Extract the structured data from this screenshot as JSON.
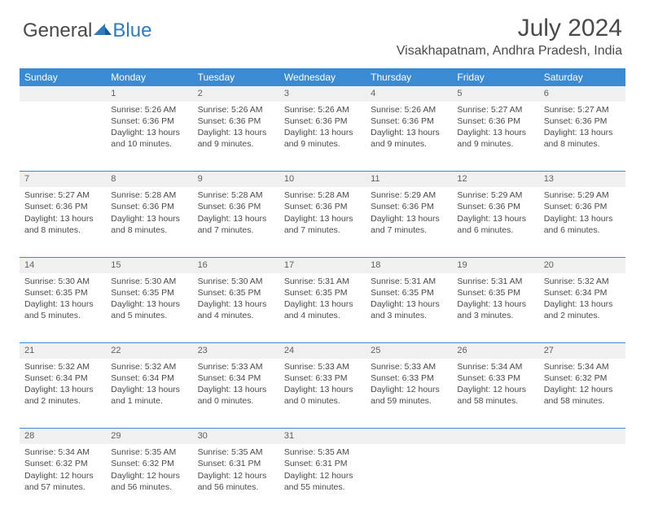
{
  "logo": {
    "text1": "General",
    "text2": "Blue"
  },
  "title": "July 2024",
  "location": "Visakhapatnam, Andhra Pradesh, India",
  "colors": {
    "header_bg": "#3b8bd4",
    "header_text": "#ffffff",
    "daynum_bg": "#f0f0f0",
    "row_divider": "#3b8bd4",
    "body_text": "#4a4a4a",
    "logo_gray": "#4a4a4a",
    "logo_blue": "#2e7cc0"
  },
  "weekdays": [
    "Sunday",
    "Monday",
    "Tuesday",
    "Wednesday",
    "Thursday",
    "Friday",
    "Saturday"
  ],
  "weeks": [
    {
      "nums": [
        "",
        "1",
        "2",
        "3",
        "4",
        "5",
        "6"
      ],
      "cells": [
        null,
        {
          "sunrise": "Sunrise: 5:26 AM",
          "sunset": "Sunset: 6:36 PM",
          "day1": "Daylight: 13 hours",
          "day2": "and 10 minutes."
        },
        {
          "sunrise": "Sunrise: 5:26 AM",
          "sunset": "Sunset: 6:36 PM",
          "day1": "Daylight: 13 hours",
          "day2": "and 9 minutes."
        },
        {
          "sunrise": "Sunrise: 5:26 AM",
          "sunset": "Sunset: 6:36 PM",
          "day1": "Daylight: 13 hours",
          "day2": "and 9 minutes."
        },
        {
          "sunrise": "Sunrise: 5:26 AM",
          "sunset": "Sunset: 6:36 PM",
          "day1": "Daylight: 13 hours",
          "day2": "and 9 minutes."
        },
        {
          "sunrise": "Sunrise: 5:27 AM",
          "sunset": "Sunset: 6:36 PM",
          "day1": "Daylight: 13 hours",
          "day2": "and 9 minutes."
        },
        {
          "sunrise": "Sunrise: 5:27 AM",
          "sunset": "Sunset: 6:36 PM",
          "day1": "Daylight: 13 hours",
          "day2": "and 8 minutes."
        }
      ]
    },
    {
      "nums": [
        "7",
        "8",
        "9",
        "10",
        "11",
        "12",
        "13"
      ],
      "cells": [
        {
          "sunrise": "Sunrise: 5:27 AM",
          "sunset": "Sunset: 6:36 PM",
          "day1": "Daylight: 13 hours",
          "day2": "and 8 minutes."
        },
        {
          "sunrise": "Sunrise: 5:28 AM",
          "sunset": "Sunset: 6:36 PM",
          "day1": "Daylight: 13 hours",
          "day2": "and 8 minutes."
        },
        {
          "sunrise": "Sunrise: 5:28 AM",
          "sunset": "Sunset: 6:36 PM",
          "day1": "Daylight: 13 hours",
          "day2": "and 7 minutes."
        },
        {
          "sunrise": "Sunrise: 5:28 AM",
          "sunset": "Sunset: 6:36 PM",
          "day1": "Daylight: 13 hours",
          "day2": "and 7 minutes."
        },
        {
          "sunrise": "Sunrise: 5:29 AM",
          "sunset": "Sunset: 6:36 PM",
          "day1": "Daylight: 13 hours",
          "day2": "and 7 minutes."
        },
        {
          "sunrise": "Sunrise: 5:29 AM",
          "sunset": "Sunset: 6:36 PM",
          "day1": "Daylight: 13 hours",
          "day2": "and 6 minutes."
        },
        {
          "sunrise": "Sunrise: 5:29 AM",
          "sunset": "Sunset: 6:36 PM",
          "day1": "Daylight: 13 hours",
          "day2": "and 6 minutes."
        }
      ]
    },
    {
      "nums": [
        "14",
        "15",
        "16",
        "17",
        "18",
        "19",
        "20"
      ],
      "cells": [
        {
          "sunrise": "Sunrise: 5:30 AM",
          "sunset": "Sunset: 6:35 PM",
          "day1": "Daylight: 13 hours",
          "day2": "and 5 minutes."
        },
        {
          "sunrise": "Sunrise: 5:30 AM",
          "sunset": "Sunset: 6:35 PM",
          "day1": "Daylight: 13 hours",
          "day2": "and 5 minutes."
        },
        {
          "sunrise": "Sunrise: 5:30 AM",
          "sunset": "Sunset: 6:35 PM",
          "day1": "Daylight: 13 hours",
          "day2": "and 4 minutes."
        },
        {
          "sunrise": "Sunrise: 5:31 AM",
          "sunset": "Sunset: 6:35 PM",
          "day1": "Daylight: 13 hours",
          "day2": "and 4 minutes."
        },
        {
          "sunrise": "Sunrise: 5:31 AM",
          "sunset": "Sunset: 6:35 PM",
          "day1": "Daylight: 13 hours",
          "day2": "and 3 minutes."
        },
        {
          "sunrise": "Sunrise: 5:31 AM",
          "sunset": "Sunset: 6:35 PM",
          "day1": "Daylight: 13 hours",
          "day2": "and 3 minutes."
        },
        {
          "sunrise": "Sunrise: 5:32 AM",
          "sunset": "Sunset: 6:34 PM",
          "day1": "Daylight: 13 hours",
          "day2": "and 2 minutes."
        }
      ]
    },
    {
      "nums": [
        "21",
        "22",
        "23",
        "24",
        "25",
        "26",
        "27"
      ],
      "cells": [
        {
          "sunrise": "Sunrise: 5:32 AM",
          "sunset": "Sunset: 6:34 PM",
          "day1": "Daylight: 13 hours",
          "day2": "and 2 minutes."
        },
        {
          "sunrise": "Sunrise: 5:32 AM",
          "sunset": "Sunset: 6:34 PM",
          "day1": "Daylight: 13 hours",
          "day2": "and 1 minute."
        },
        {
          "sunrise": "Sunrise: 5:33 AM",
          "sunset": "Sunset: 6:34 PM",
          "day1": "Daylight: 13 hours",
          "day2": "and 0 minutes."
        },
        {
          "sunrise": "Sunrise: 5:33 AM",
          "sunset": "Sunset: 6:33 PM",
          "day1": "Daylight: 13 hours",
          "day2": "and 0 minutes."
        },
        {
          "sunrise": "Sunrise: 5:33 AM",
          "sunset": "Sunset: 6:33 PM",
          "day1": "Daylight: 12 hours",
          "day2": "and 59 minutes."
        },
        {
          "sunrise": "Sunrise: 5:34 AM",
          "sunset": "Sunset: 6:33 PM",
          "day1": "Daylight: 12 hours",
          "day2": "and 58 minutes."
        },
        {
          "sunrise": "Sunrise: 5:34 AM",
          "sunset": "Sunset: 6:32 PM",
          "day1": "Daylight: 12 hours",
          "day2": "and 58 minutes."
        }
      ]
    },
    {
      "nums": [
        "28",
        "29",
        "30",
        "31",
        "",
        "",
        ""
      ],
      "cells": [
        {
          "sunrise": "Sunrise: 5:34 AM",
          "sunset": "Sunset: 6:32 PM",
          "day1": "Daylight: 12 hours",
          "day2": "and 57 minutes."
        },
        {
          "sunrise": "Sunrise: 5:35 AM",
          "sunset": "Sunset: 6:32 PM",
          "day1": "Daylight: 12 hours",
          "day2": "and 56 minutes."
        },
        {
          "sunrise": "Sunrise: 5:35 AM",
          "sunset": "Sunset: 6:31 PM",
          "day1": "Daylight: 12 hours",
          "day2": "and 56 minutes."
        },
        {
          "sunrise": "Sunrise: 5:35 AM",
          "sunset": "Sunset: 6:31 PM",
          "day1": "Daylight: 12 hours",
          "day2": "and 55 minutes."
        },
        null,
        null,
        null
      ]
    }
  ]
}
